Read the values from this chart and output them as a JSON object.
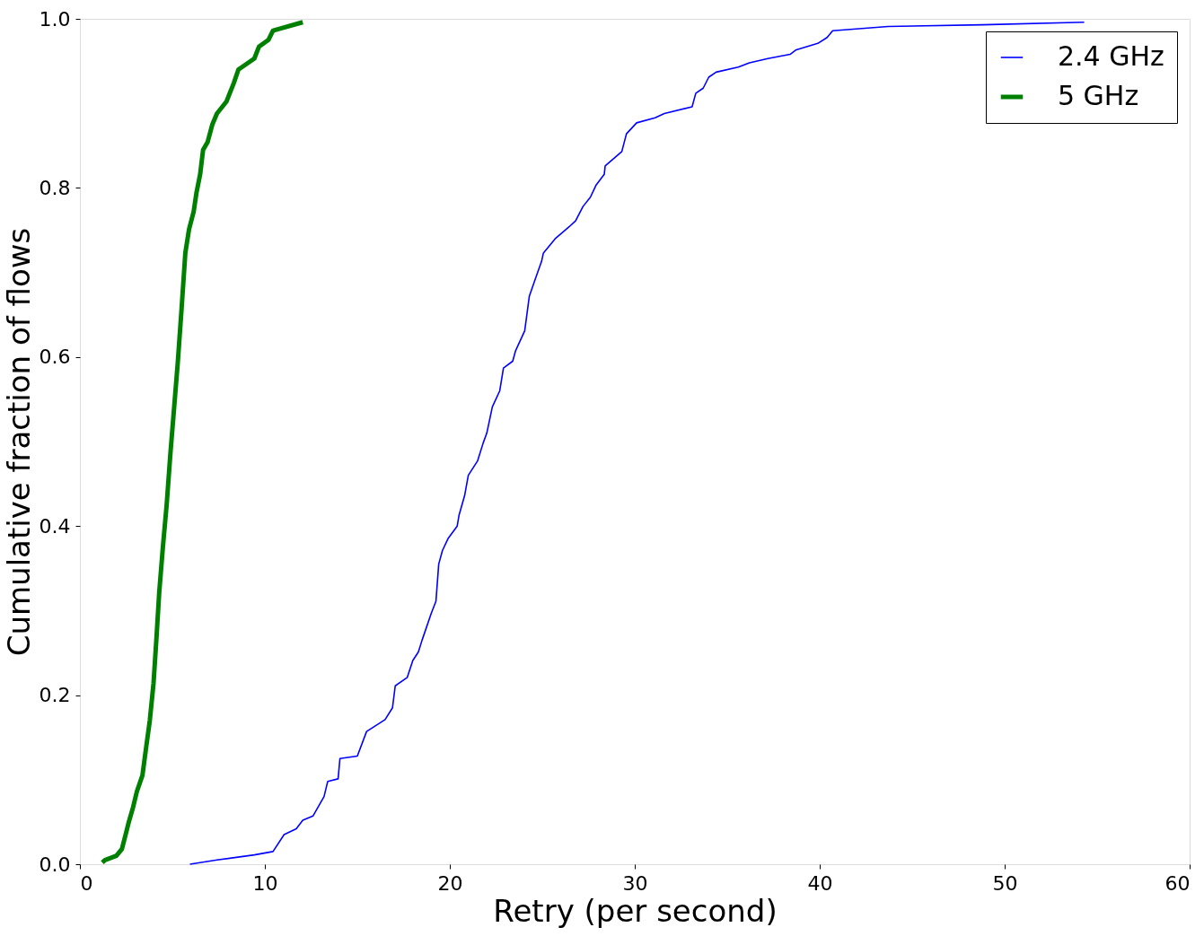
{
  "chart_data": {
    "type": "line",
    "xlabel": "Retry (per second)",
    "ylabel": "Cumulative fraction of flows",
    "xlim": [
      0,
      60
    ],
    "xticks": [
      0,
      10,
      20,
      30,
      40,
      50,
      60
    ],
    "ylim": [
      0,
      1.0
    ],
    "yticks": [
      {
        "value": 0,
        "label": "0.0"
      },
      {
        "value": 0.2,
        "label": "0.2"
      },
      {
        "value": 0.4,
        "label": "0.4"
      },
      {
        "value": 0.6,
        "label": "0.6"
      },
      {
        "value": 0.8,
        "label": "0.8"
      },
      {
        "value": 1.0,
        "label": "1.0"
      }
    ],
    "grid": false,
    "legend": "top right",
    "marker": "none",
    "line_style": "solid",
    "series": [
      {
        "name": "2.4 GHz",
        "color": "#0000ff",
        "x": [
          5.95,
          7.41,
          9.43,
          10.44,
          11.04,
          11.7,
          12.05,
          12.6,
          13.2,
          13.4,
          13.96,
          14.06,
          15.0,
          15.5,
          16.5,
          16.9,
          17.05,
          17.7,
          18.0,
          18.3,
          18.5,
          19.0,
          19.25,
          19.4,
          19.6,
          19.9,
          20.4,
          20.5,
          20.8,
          21.0,
          21.5,
          21.8,
          22.0,
          22.3,
          22.7,
          22.9,
          23.4,
          23.55,
          24.05,
          24.3,
          24.65,
          24.96,
          25.06,
          25.7,
          26.45,
          26.8,
          27.2,
          27.6,
          27.9,
          28.35,
          28.4,
          29.3,
          29.55,
          30.1,
          31.1,
          31.6,
          33.1,
          33.3,
          33.7,
          34.0,
          34.4,
          35.6,
          36.2,
          37.2,
          38.4,
          38.7,
          39.9,
          40.4,
          40.7,
          43.7,
          48.8,
          54.3
        ],
        "values": [
          0.0,
          0.005,
          0.011,
          0.015,
          0.035,
          0.042,
          0.052,
          0.057,
          0.08,
          0.098,
          0.101,
          0.125,
          0.128,
          0.157,
          0.171,
          0.185,
          0.211,
          0.221,
          0.241,
          0.251,
          0.265,
          0.297,
          0.311,
          0.355,
          0.371,
          0.385,
          0.4,
          0.413,
          0.436,
          0.46,
          0.477,
          0.498,
          0.51,
          0.541,
          0.56,
          0.587,
          0.595,
          0.607,
          0.631,
          0.672,
          0.694,
          0.713,
          0.723,
          0.74,
          0.754,
          0.761,
          0.778,
          0.789,
          0.803,
          0.816,
          0.826,
          0.843,
          0.864,
          0.877,
          0.883,
          0.888,
          0.896,
          0.912,
          0.918,
          0.931,
          0.937,
          0.943,
          0.948,
          0.953,
          0.958,
          0.963,
          0.971,
          0.978,
          0.986,
          0.991,
          0.993,
          0.996
        ]
      },
      {
        "name": "5 GHz",
        "color": "#008000",
        "x": [
          1.21,
          1.36,
          1.97,
          2.27,
          2.47,
          2.62,
          2.87,
          3.08,
          3.38,
          3.58,
          3.78,
          3.98,
          4.14,
          4.29,
          4.49,
          4.69,
          4.89,
          5.09,
          5.29,
          5.5,
          5.7,
          5.9,
          6.15,
          6.3,
          6.5,
          6.66,
          6.9,
          7.16,
          7.41,
          7.92,
          8.32,
          8.57,
          9.43,
          9.68,
          10.19,
          10.44,
          12.05
        ],
        "values": [
          0.002,
          0.005,
          0.01,
          0.018,
          0.035,
          0.048,
          0.067,
          0.086,
          0.105,
          0.138,
          0.17,
          0.214,
          0.268,
          0.322,
          0.376,
          0.425,
          0.485,
          0.539,
          0.593,
          0.658,
          0.723,
          0.751,
          0.772,
          0.794,
          0.816,
          0.845,
          0.854,
          0.875,
          0.888,
          0.902,
          0.924,
          0.94,
          0.953,
          0.967,
          0.975,
          0.986,
          0.996
        ]
      }
    ]
  }
}
